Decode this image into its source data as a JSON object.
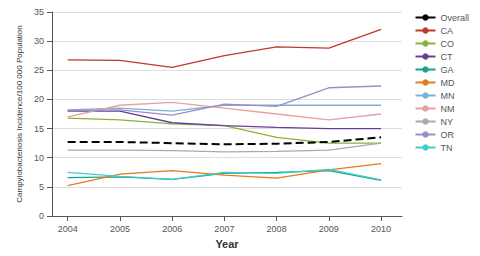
{
  "chart_data": {
    "type": "line",
    "xlabel": "Year",
    "ylabel": "Campylobacteriosis Incidence/100 000 Population",
    "x": [
      2004,
      2005,
      2006,
      2007,
      2008,
      2009,
      2010
    ],
    "xlim": [
      2003.7,
      2010.4
    ],
    "xticks": [
      2004,
      2005,
      2006,
      2007,
      2008,
      2009,
      2010
    ],
    "ylim": [
      0,
      35
    ],
    "yticks": [
      0,
      5,
      10,
      15,
      20,
      25,
      30,
      35
    ],
    "grid": true,
    "legend": "right",
    "series": [
      {
        "name": "Overall",
        "color": "#000000",
        "line_style": "dashed",
        "values": [
          12.7,
          12.7,
          12.5,
          12.3,
          12.4,
          12.7,
          13.5
        ]
      },
      {
        "name": "CA",
        "color": "#c0392b",
        "line_style": "solid",
        "values": [
          26.8,
          26.7,
          25.5,
          27.5,
          29.0,
          28.8,
          32.0
        ]
      },
      {
        "name": "CO",
        "color": "#8db03a",
        "line_style": "solid",
        "values": [
          16.8,
          16.5,
          15.8,
          15.5,
          13.5,
          12.5,
          12.5
        ]
      },
      {
        "name": "CT",
        "color": "#6a3d9a",
        "line_style": "solid",
        "values": [
          18.0,
          18.0,
          16.0,
          15.5,
          15.2,
          15.0,
          15.0
        ]
      },
      {
        "name": "GA",
        "color": "#1a9e8f",
        "line_style": "solid",
        "values": [
          6.6,
          6.7,
          6.3,
          7.3,
          7.5,
          7.8,
          6.1
        ]
      },
      {
        "name": "MD",
        "color": "#e07b20",
        "line_style": "solid",
        "values": [
          5.2,
          7.2,
          7.8,
          7.0,
          6.5,
          7.9,
          9.0
        ]
      },
      {
        "name": "MN",
        "color": "#7ab0d8",
        "line_style": "solid",
        "values": [
          18.2,
          18.5,
          18.0,
          19.0,
          19.0,
          19.0,
          19.0
        ]
      },
      {
        "name": "NM",
        "color": "#e8a0a0",
        "line_style": "solid",
        "values": [
          17.0,
          19.0,
          19.5,
          18.5,
          17.5,
          16.5,
          17.5
        ]
      },
      {
        "name": "NY",
        "color": "#aaaaaa",
        "line_style": "solid",
        "values": [
          11.3,
          11.3,
          11.2,
          11.0,
          11.1,
          11.3,
          12.5
        ]
      },
      {
        "name": "OR",
        "color": "#9b8ec4",
        "line_style": "solid",
        "values": [
          18.1,
          18.2,
          17.3,
          19.2,
          18.8,
          22.0,
          22.3
        ]
      },
      {
        "name": "TN",
        "color": "#3ecece",
        "line_style": "solid",
        "values": [
          7.5,
          6.8,
          6.3,
          7.5,
          7.3,
          8.0,
          6.2
        ]
      }
    ]
  }
}
